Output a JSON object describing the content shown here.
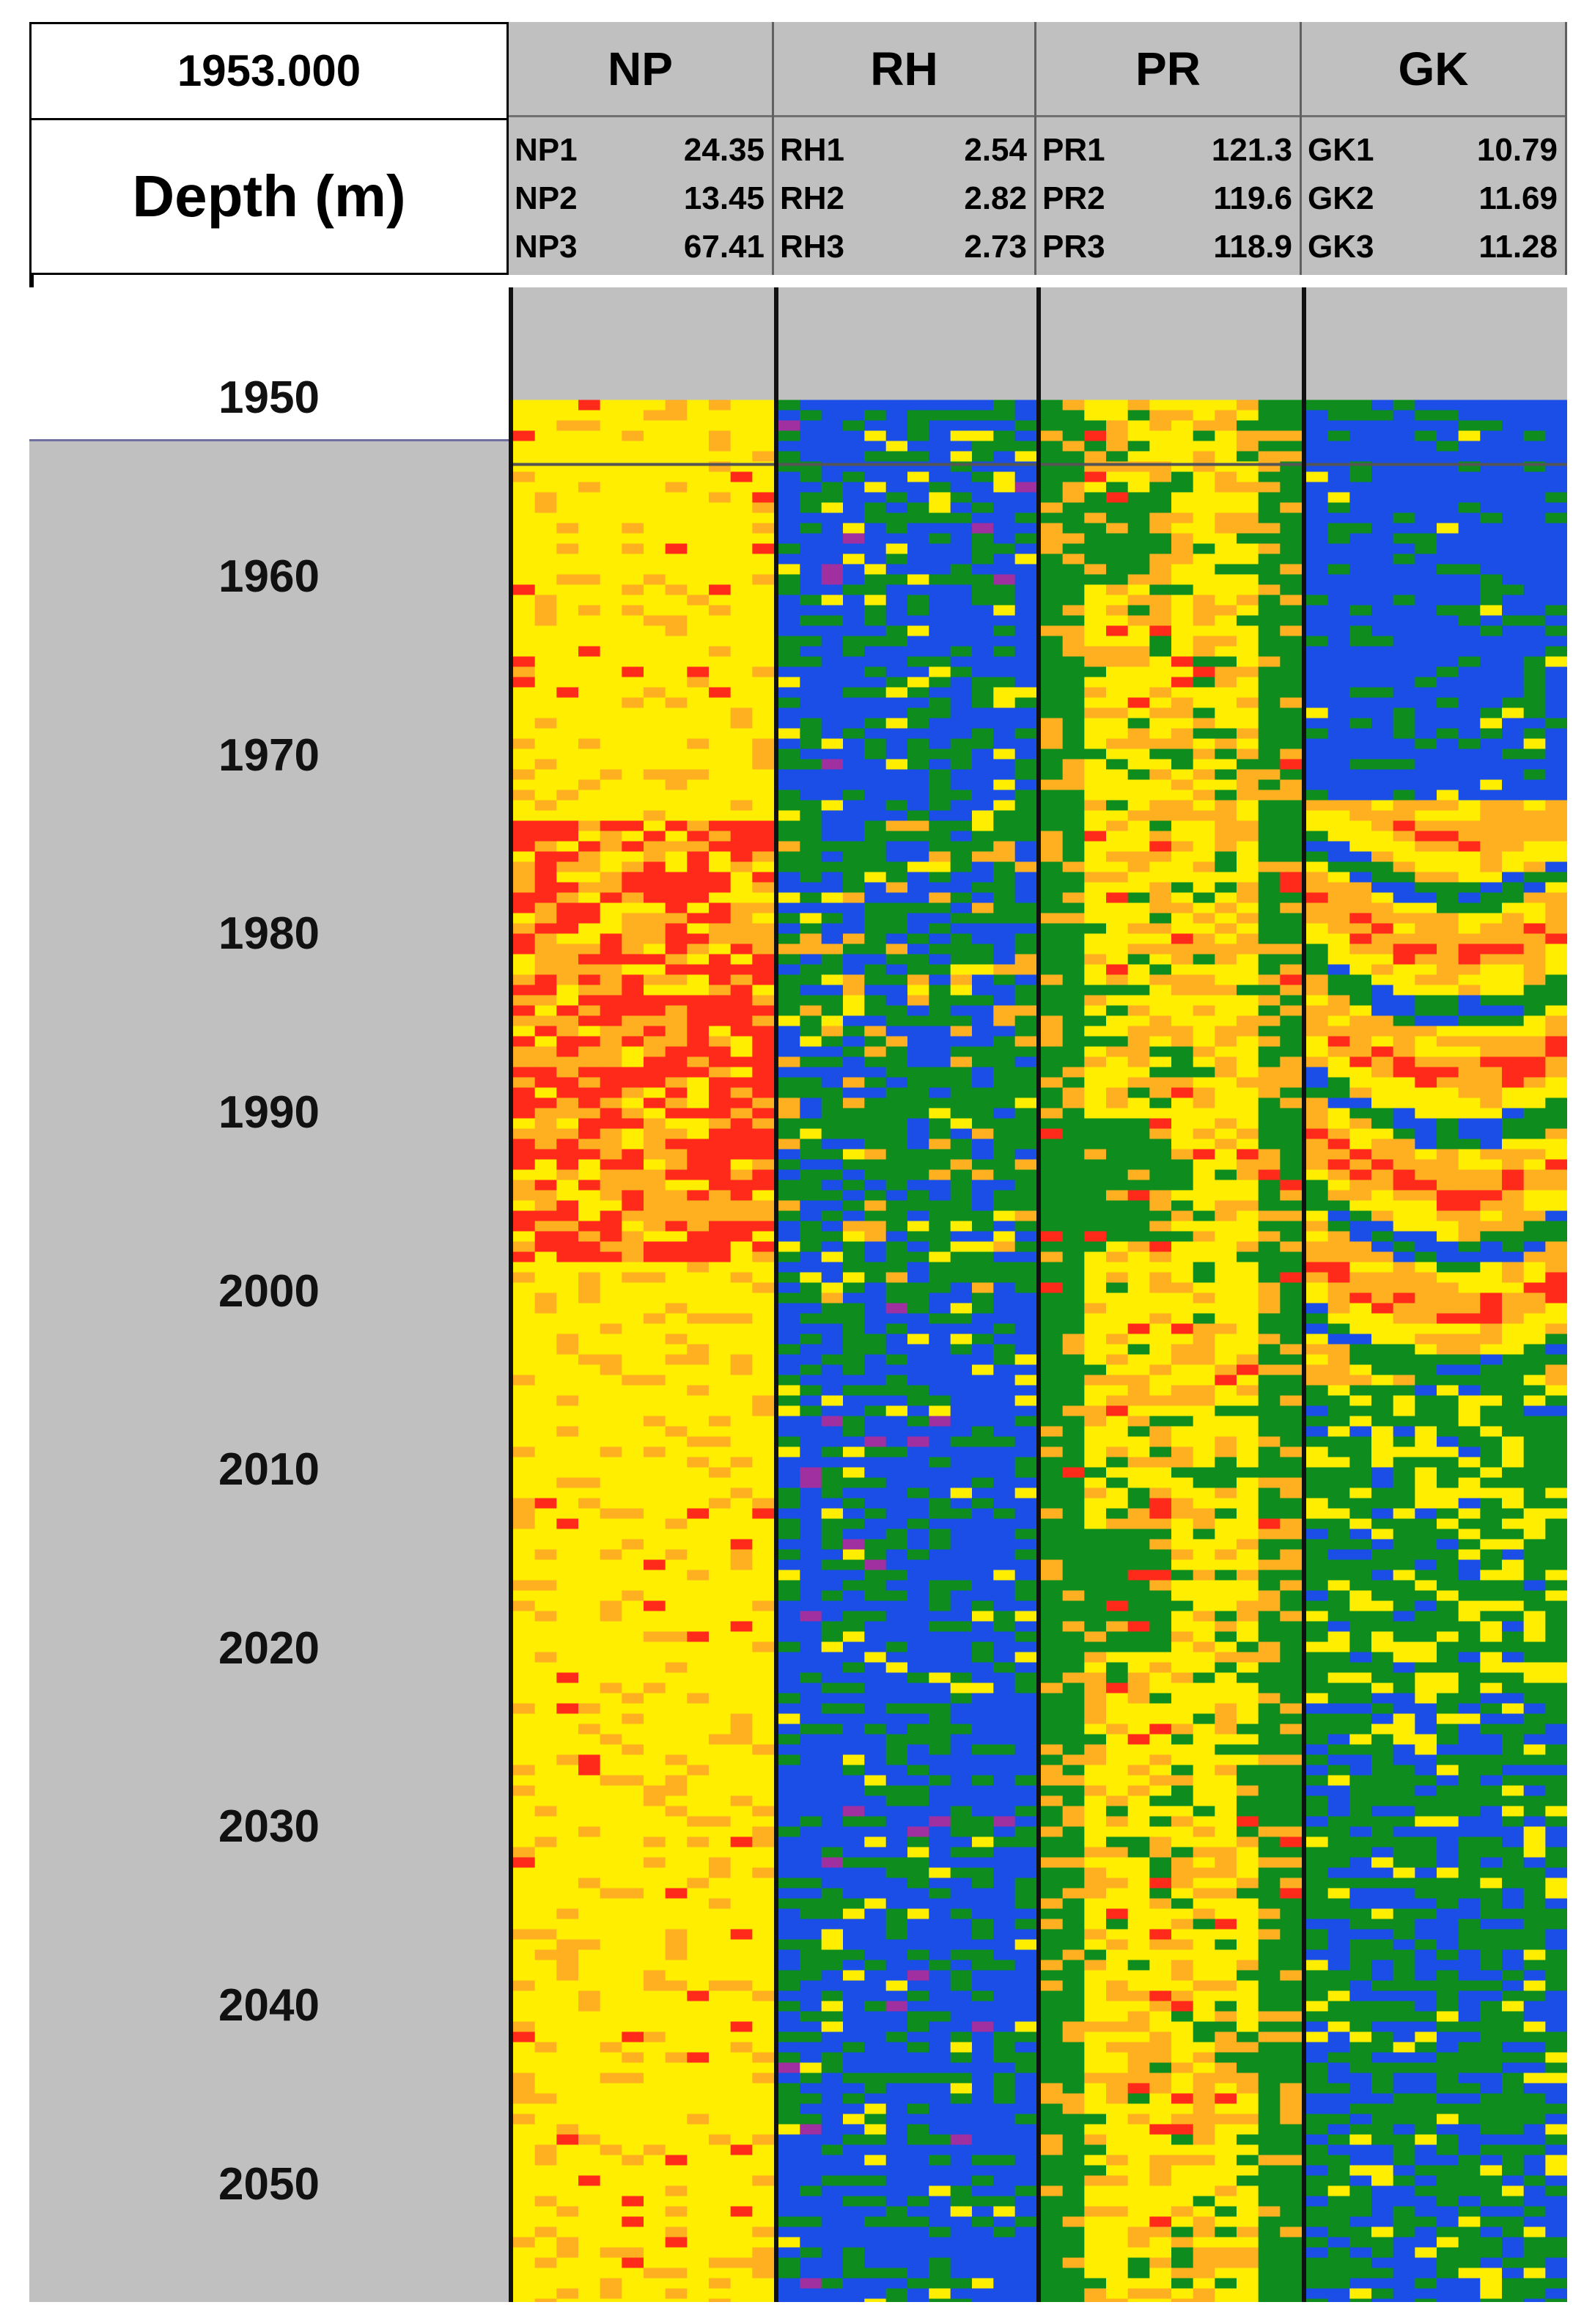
{
  "chart_data": {
    "type": "heatmap",
    "current_depth": "1953.000",
    "depth_label": "Depth (m)",
    "y_ticks": [
      "1950",
      "1960",
      "1970",
      "1980",
      "1990",
      "2000",
      "2010",
      "2020",
      "2030",
      "2040",
      "2050"
    ],
    "y_tick_values": [
      1950,
      1960,
      1970,
      1980,
      1990,
      2000,
      2010,
      2020,
      2030,
      2040,
      2050
    ],
    "ylim": [
      1943.7,
      2056.5
    ],
    "log_start_depth": 1950,
    "colors": {
      "blue": "#1a4ee6",
      "green": "#0e8c1e",
      "yellow": "#ffee00",
      "orange": "#ffb020",
      "red": "#ff2a1a"
    },
    "tracks": [
      {
        "name": "NP",
        "legend": [
          {
            "name": "NP1",
            "value": "24.35"
          },
          {
            "name": "NP2",
            "value": "13.45"
          },
          {
            "name": "NP3",
            "value": "67.41"
          }
        ],
        "zones": [
          [
            1950,
            1973,
            "yellow-dominant"
          ],
          [
            1973,
            1998,
            "red-orange"
          ],
          [
            1998,
            2056,
            "yellow-dominant"
          ]
        ]
      },
      {
        "name": "RH",
        "legend": [
          {
            "name": "RH1",
            "value": "2.54"
          },
          {
            "name": "RH2",
            "value": "2.82"
          },
          {
            "name": "RH3",
            "value": "2.73"
          }
        ],
        "zones": [
          [
            1950,
            1973,
            "blue-dominant"
          ],
          [
            1973,
            2000,
            "mixed green-yellow"
          ],
          [
            2000,
            2056,
            "blue-green"
          ]
        ]
      },
      {
        "name": "PR",
        "legend": [
          {
            "name": "PR1",
            "value": "121.3"
          },
          {
            "name": "PR2",
            "value": "119.6"
          },
          {
            "name": "PR3",
            "value": "118.9"
          }
        ],
        "zones": [
          [
            1950,
            1968,
            "yellow-green"
          ],
          [
            1968,
            1988,
            "yellow"
          ],
          [
            1988,
            2056,
            "yellow-green"
          ]
        ]
      },
      {
        "name": "GK",
        "legend": [
          {
            "name": "GK1",
            "value": "10.79"
          },
          {
            "name": "GK2",
            "value": "11.69"
          },
          {
            "name": "GK3",
            "value": "11.28"
          }
        ],
        "zones": [
          [
            1950,
            1972,
            "blue-dominant"
          ],
          [
            1972,
            2005,
            "orange-yellow bands"
          ],
          [
            2005,
            2056,
            "green-blue"
          ]
        ]
      }
    ]
  }
}
